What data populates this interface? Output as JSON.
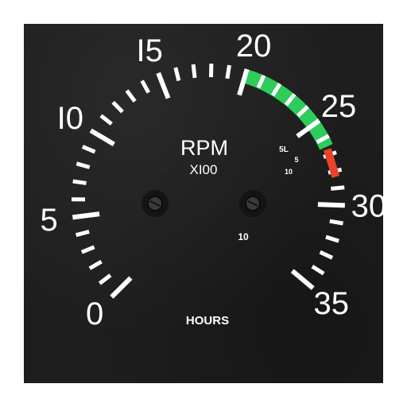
{
  "gauge": {
    "unit_label": "RPM",
    "multiplier_label": "XI00",
    "hours_label": "HOURS",
    "hours_value": "10",
    "scale_labels": [
      "0",
      "5",
      "I0",
      "I5",
      "20",
      "25",
      "30",
      "35"
    ],
    "scale_values": [
      0,
      5,
      10,
      15,
      20,
      25,
      30,
      35
    ],
    "scale_min": 0,
    "scale_max": 35,
    "green_arc_range": [
      20,
      26.5
    ],
    "red_line_value": 27.5,
    "limit_labels": [
      "5L",
      "5",
      "10"
    ],
    "colors": {
      "green_arc": "#2ecc5a",
      "red_line": "#e8432a",
      "face": "#1e1e1e",
      "markings": "#ffffff"
    }
  }
}
